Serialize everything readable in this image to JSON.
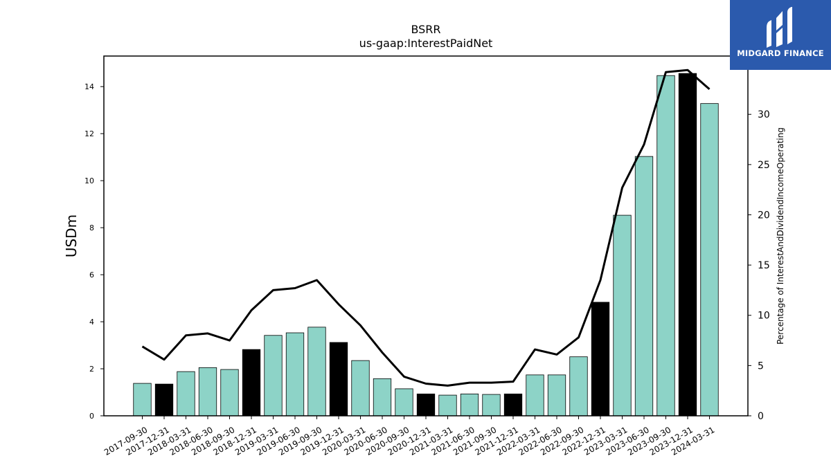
{
  "chart_data": {
    "type": "bar",
    "title": "BSRR",
    "subtitle": "us-gaap:InterestPaidNet",
    "ylabel": "USDm",
    "y2label": "Percentage of InterestAndDividendIncomeOperating",
    "ylim": [
      0,
      15.3
    ],
    "y2lim": [
      0,
      35.8
    ],
    "yticks": [
      0,
      2,
      4,
      6,
      8,
      10,
      12,
      14
    ],
    "y2ticks": [
      0,
      5,
      10,
      15,
      20,
      25,
      30
    ],
    "categories": [
      "2017-09-30",
      "2017-12-31",
      "2018-03-31",
      "2018-06-30",
      "2018-09-30",
      "2018-12-31",
      "2019-03-31",
      "2019-06-30",
      "2019-09-30",
      "2019-12-31",
      "2020-03-31",
      "2020-06-30",
      "2020-09-30",
      "2020-12-31",
      "2021-03-31",
      "2021-06-30",
      "2021-09-30",
      "2021-12-31",
      "2022-03-31",
      "2022-06-30",
      "2022-09-30",
      "2022-12-31",
      "2023-03-31",
      "2023-06-30",
      "2023-09-30",
      "2023-12-31",
      "2024-03-31"
    ],
    "series": [
      {
        "type": "bar",
        "values": [
          1.38,
          1.35,
          1.88,
          2.05,
          1.97,
          2.82,
          3.42,
          3.53,
          3.77,
          3.12,
          2.35,
          1.58,
          1.15,
          0.93,
          0.88,
          0.93,
          0.91,
          0.93,
          1.74,
          1.74,
          2.51,
          4.83,
          8.53,
          11.03,
          14.47,
          14.56,
          13.28
        ],
        "colors": [
          "#8dd3c7",
          "#000000",
          "#8dd3c7",
          "#8dd3c7",
          "#8dd3c7",
          "#000000",
          "#8dd3c7",
          "#8dd3c7",
          "#8dd3c7",
          "#000000",
          "#8dd3c7",
          "#8dd3c7",
          "#8dd3c7",
          "#000000",
          "#8dd3c7",
          "#8dd3c7",
          "#8dd3c7",
          "#000000",
          "#8dd3c7",
          "#8dd3c7",
          "#8dd3c7",
          "#000000",
          "#8dd3c7",
          "#8dd3c7",
          "#8dd3c7",
          "#000000",
          "#8dd3c7"
        ]
      },
      {
        "type": "line",
        "axis": "right",
        "color": "#000000",
        "values": [
          6.9,
          5.6,
          8.0,
          8.2,
          7.5,
          10.5,
          12.5,
          12.7,
          13.5,
          11.1,
          9.0,
          6.3,
          3.9,
          3.2,
          3.0,
          3.3,
          3.3,
          3.4,
          6.6,
          6.1,
          7.8,
          13.5,
          22.7,
          27.0,
          34.2,
          34.4,
          32.5
        ]
      }
    ],
    "grid": false
  },
  "logo": {
    "text": "MIDGARD FINANCE",
    "color": "#2b5aad"
  }
}
